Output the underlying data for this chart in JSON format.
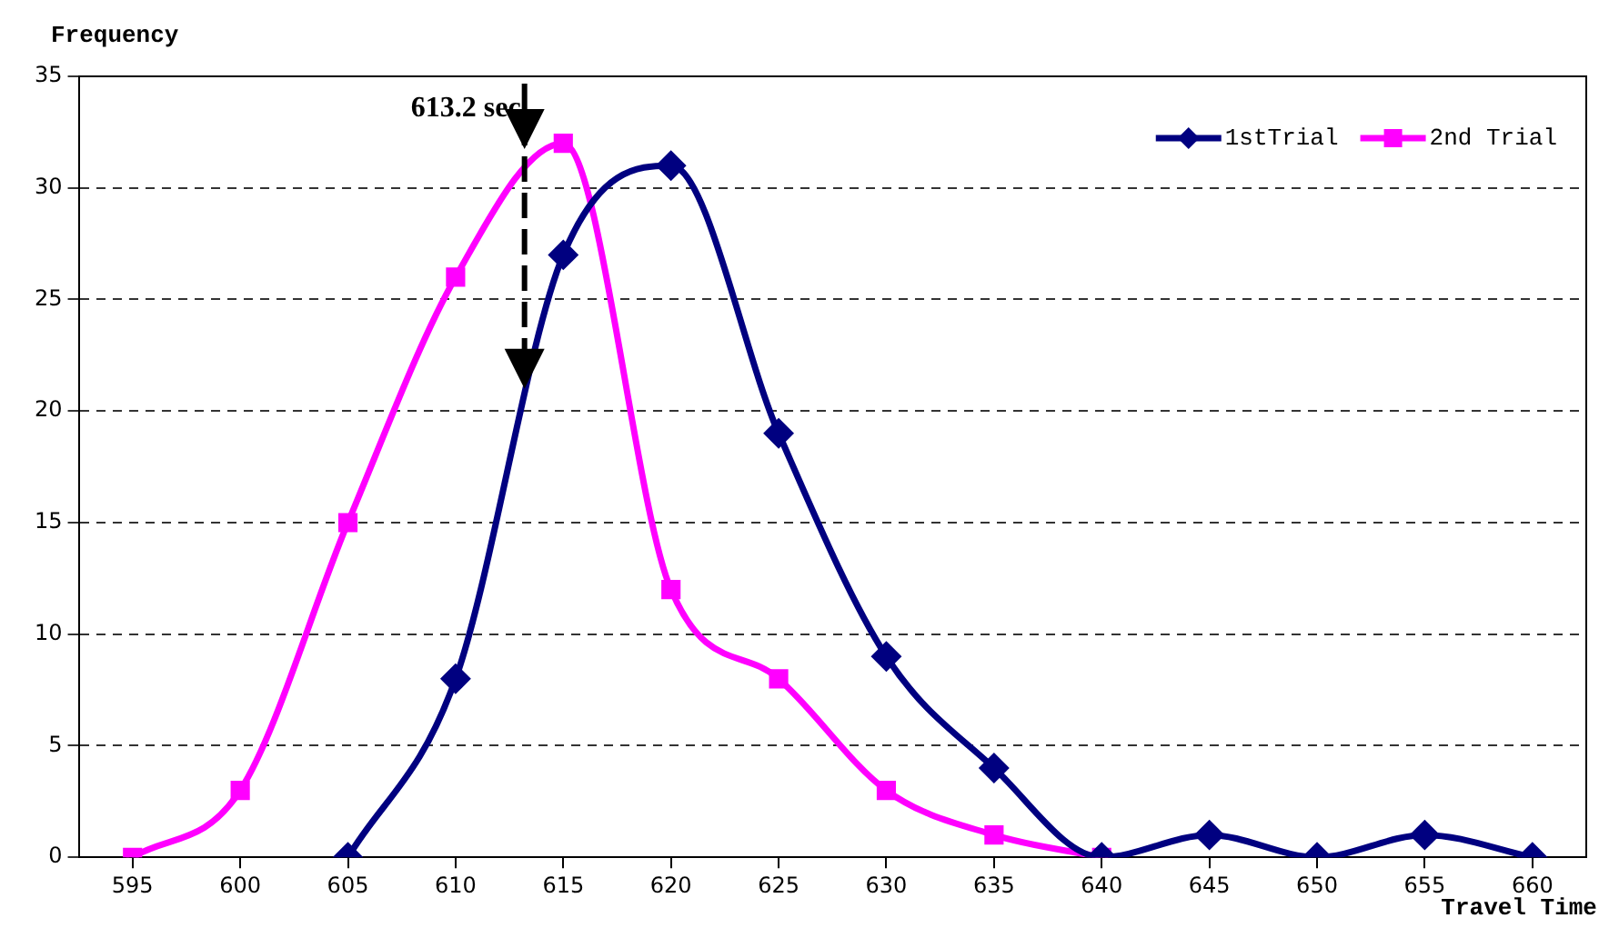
{
  "chart_data": {
    "type": "line",
    "xlabel": "Travel Time",
    "ylabel": "Frequency",
    "xlim": [
      592.5,
      662.5
    ],
    "xticks": [
      595,
      600,
      605,
      610,
      615,
      620,
      625,
      630,
      635,
      640,
      645,
      650,
      655,
      660
    ],
    "ylim": [
      0,
      35
    ],
    "yticks": [
      0,
      5,
      10,
      15,
      20,
      25,
      30,
      35
    ],
    "series": [
      {
        "name": "1stTrial",
        "color": "#000080",
        "marker": "diamond",
        "x": [
          605,
          610,
          615,
          620,
          625,
          630,
          635,
          640,
          645,
          650,
          655,
          660
        ],
        "values": [
          0,
          8,
          27,
          31,
          19,
          9,
          4,
          0,
          1,
          0,
          1,
          0
        ]
      },
      {
        "name": "2nd Trial",
        "color": "#ff00ff",
        "marker": "square",
        "x": [
          595,
          600,
          605,
          610,
          615,
          620,
          625,
          630,
          635,
          640
        ],
        "values": [
          0,
          3,
          15,
          26,
          32,
          12,
          8,
          3,
          1,
          0
        ]
      }
    ],
    "ref_lines": [
      {
        "axis": "x",
        "value": 613.2,
        "label": "613.2 sec",
        "color": "#000000",
        "line_style": "dashed"
      }
    ],
    "grid": "y",
    "legend": "top right"
  }
}
